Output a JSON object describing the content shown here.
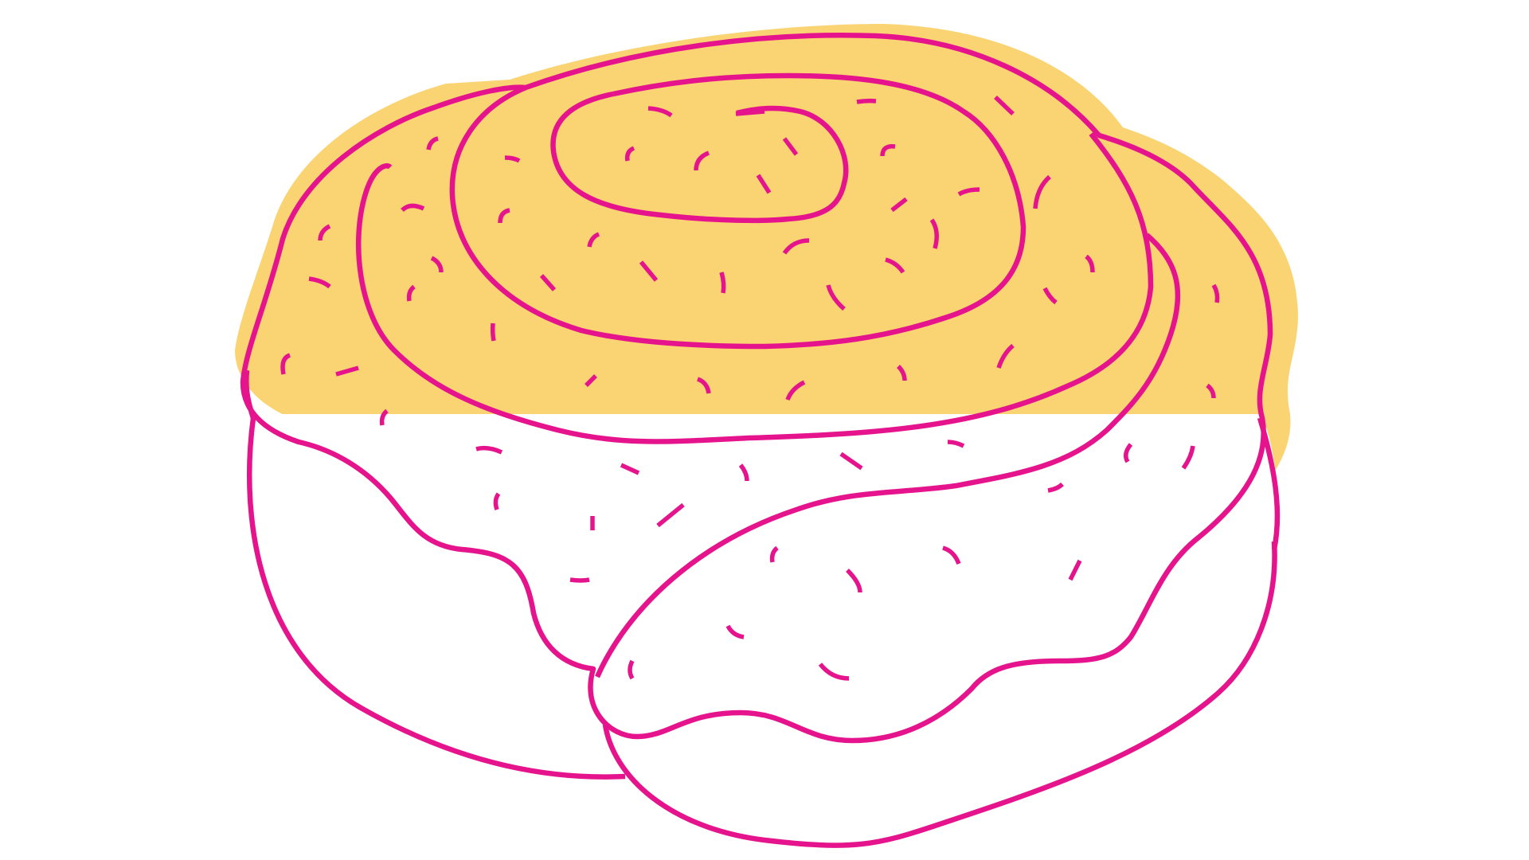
{
  "illustration": {
    "subject": "cinnamon-roll",
    "colors": {
      "background": "#ffffff",
      "icing_fill": "#fad473",
      "outline": "#e5148c",
      "roll_fill": "#ffffff"
    }
  }
}
